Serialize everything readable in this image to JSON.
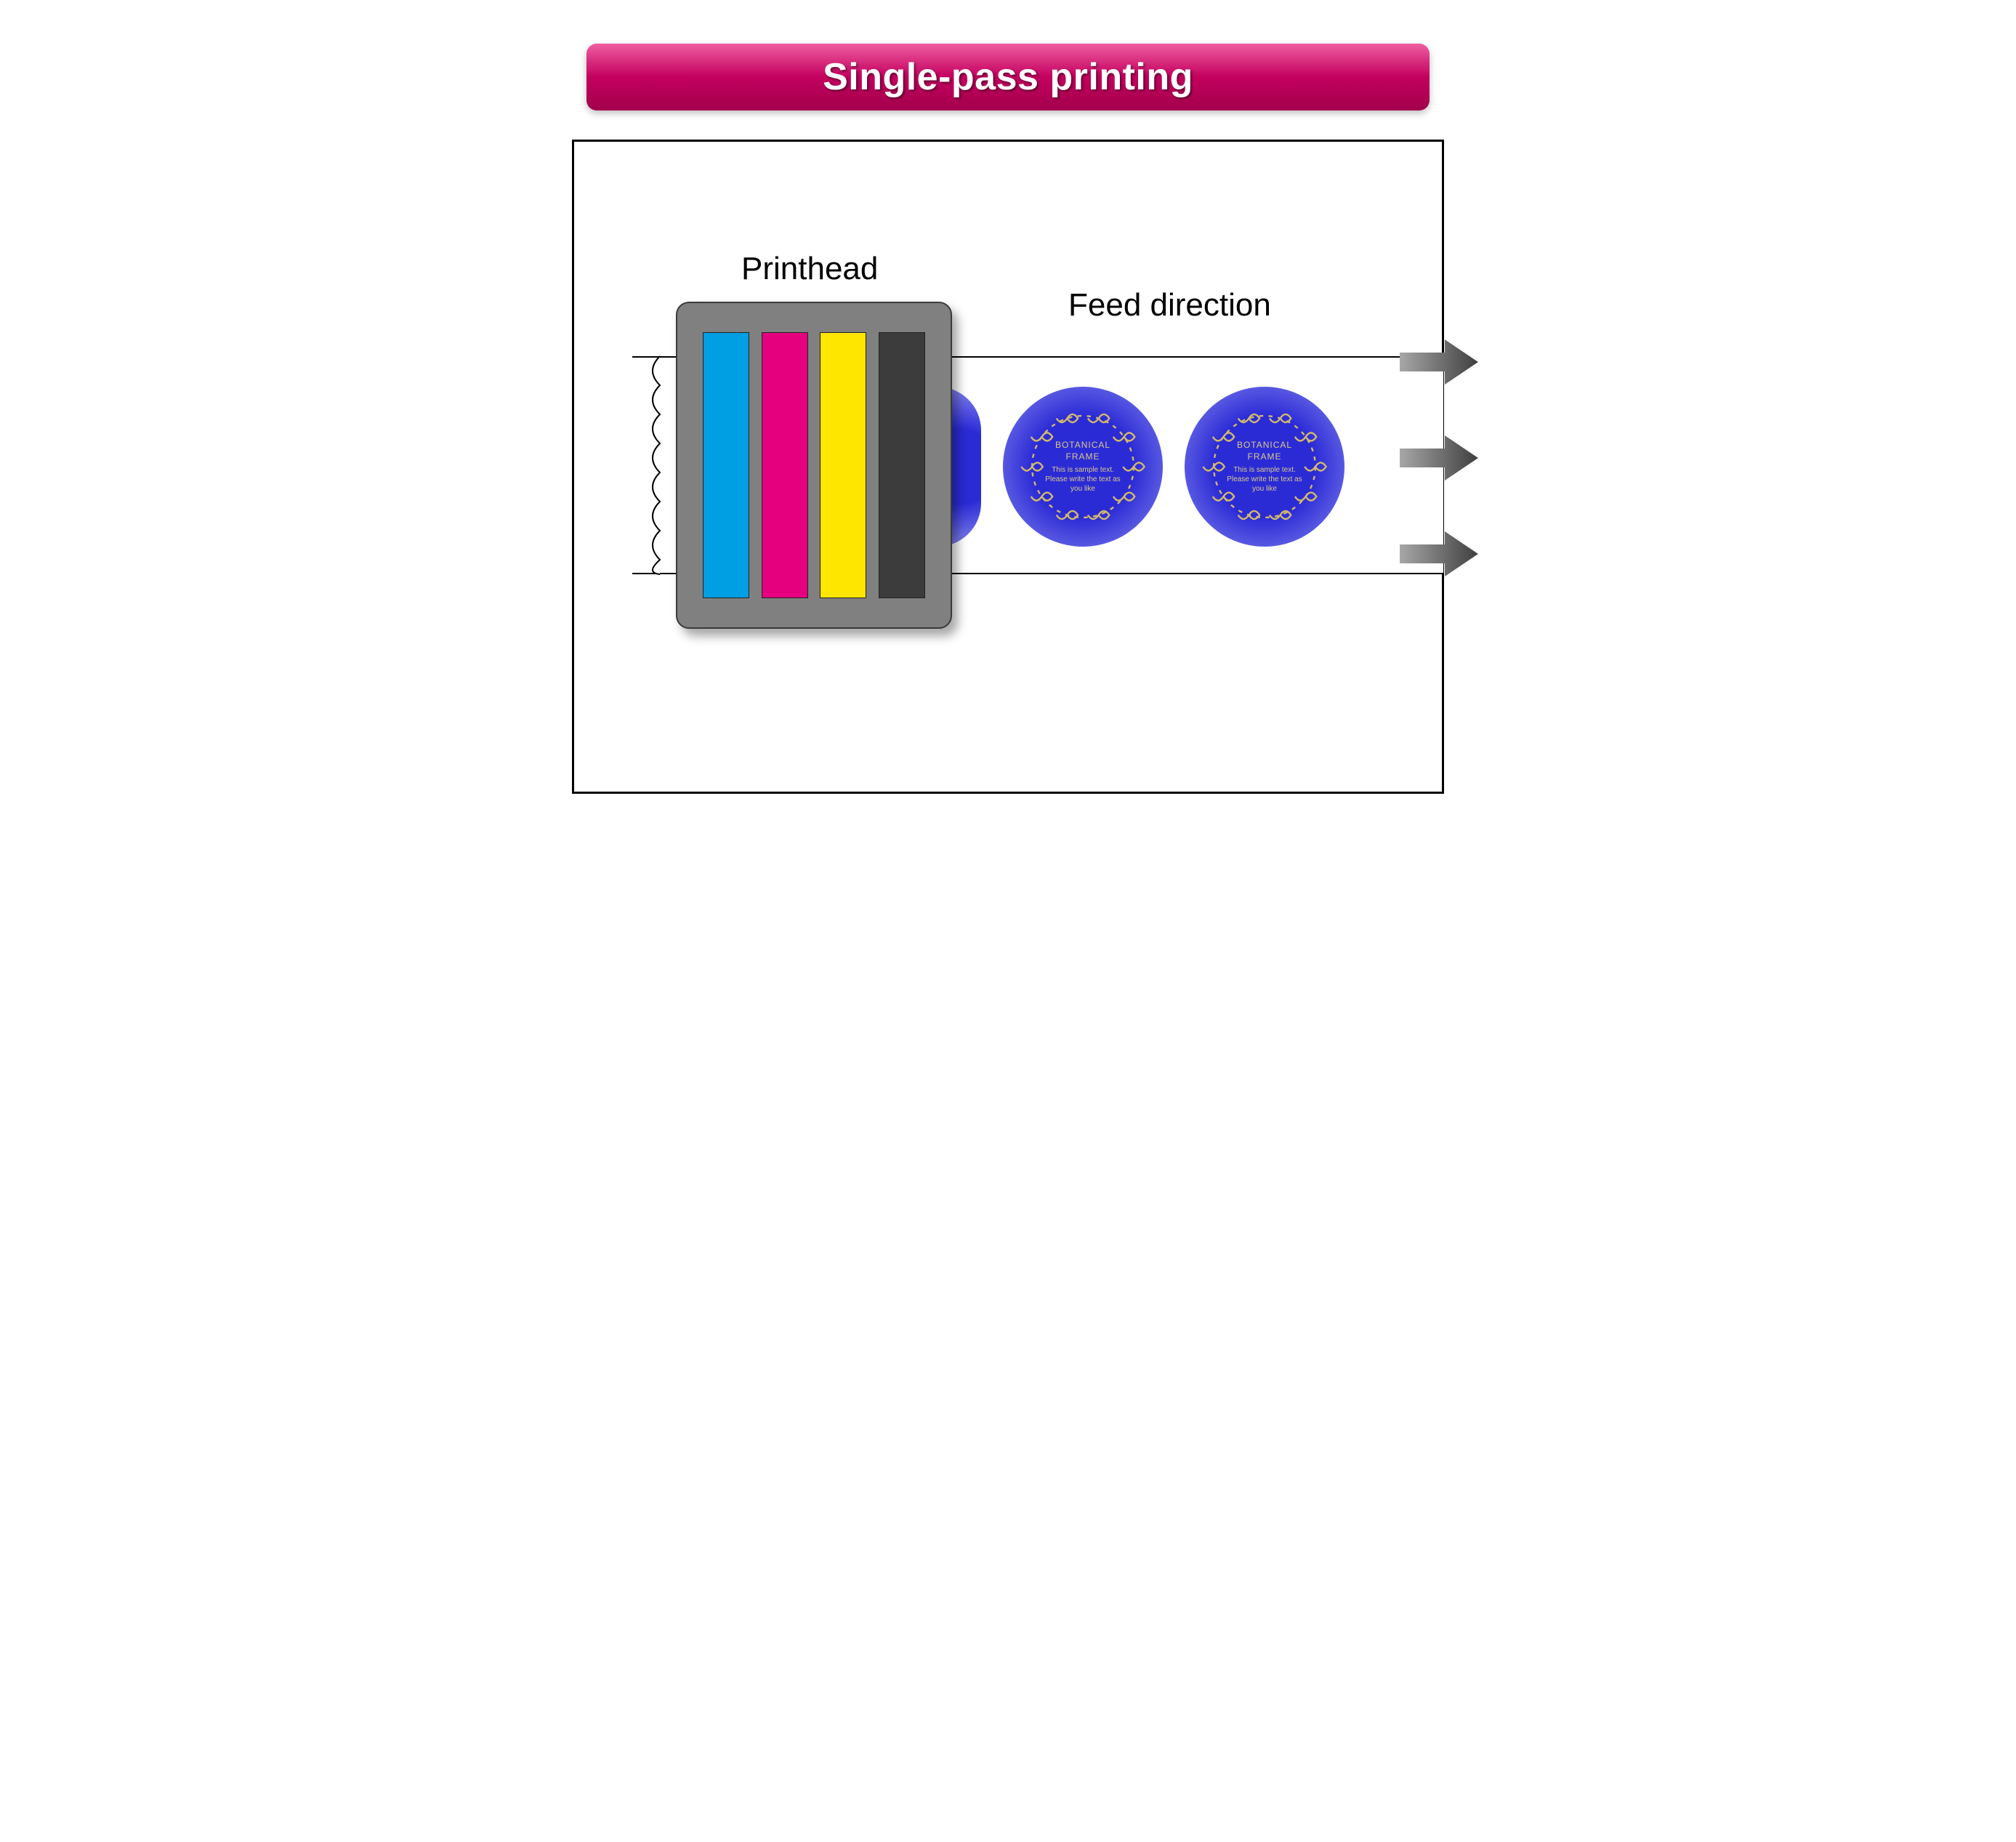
{
  "title": "Single-pass printing",
  "title_bar": {
    "gradient_top": "#ef5ea1",
    "gradient_mid": "#c4005f",
    "gradient_bottom": "#a2004c",
    "text_color": "#ffffff",
    "fontsize": 52,
    "radius": 14
  },
  "panel": {
    "border_color": "#000000",
    "background": "#ffffff"
  },
  "labels": {
    "printhead": "Printhead",
    "feed_direction": "Feed direction",
    "fontsize": 44,
    "color": "#000000"
  },
  "printhead": {
    "body_color": "#808080",
    "border_color": "#3a3a3a",
    "shadow": "rgba(0,0,0,0.35)",
    "inks": [
      {
        "name": "cyan",
        "color": "#009fe3"
      },
      {
        "name": "magenta",
        "color": "#e5007e"
      },
      {
        "name": "yellow",
        "color": "#ffe600"
      },
      {
        "name": "black",
        "color": "#3c3c3c"
      }
    ],
    "ink_border": "#222222"
  },
  "paper": {
    "background": "#ffffff",
    "border": "#000000",
    "zigzag_stroke": "#000000"
  },
  "printed_label": {
    "gradient_inner": "#2b2bd6",
    "gradient_outer": "#8a8af0",
    "ornament_color": "#d2b96b",
    "text_color": "#d9c98a",
    "title": "BOTANICAL FRAME",
    "line1": "This is sample text.",
    "line2": "Please write the text as you like",
    "count": 2,
    "show_partial_left": true
  },
  "arrows": {
    "count": 3,
    "gradient_left": "#a7a7a7",
    "gradient_right": "#3f3f3f"
  }
}
